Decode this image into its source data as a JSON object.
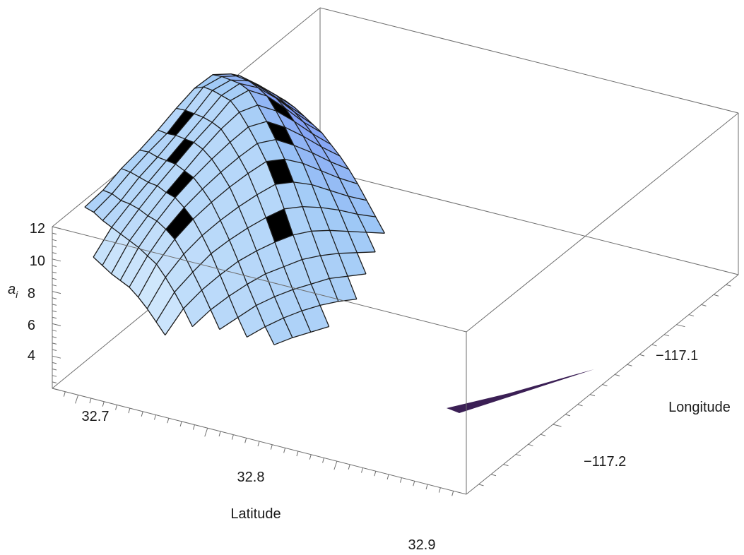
{
  "chart_data": {
    "type": "surface3d",
    "x_axis": {
      "label": "Latitude",
      "ticks": [
        "32.7",
        "32.8",
        "32.9"
      ],
      "range": [
        32.64,
        32.96
      ]
    },
    "y_axis": {
      "label": "Longitude",
      "ticks": [
        "−117.1",
        "−117.2"
      ],
      "range": [
        -117.26,
        -117.04
      ]
    },
    "z_axis": {
      "label": "a",
      "label_subscript": "i",
      "ticks": [
        "4",
        "6",
        "8",
        "10",
        "12"
      ],
      "range": [
        2.5,
        12.5
      ]
    },
    "grid_size": [
      16,
      13
    ],
    "surface_heights": [
      [
        null,
        4.0,
        4.8,
        5.9,
        6.8,
        7.8,
        8.9,
        9.9,
        10.5,
        10.3,
        9.6,
        8.8,
        7.9
      ],
      [
        null,
        4.3,
        5.2,
        6.3,
        7.3,
        8.2,
        9.4,
        10.6,
        11.0,
        10.8,
        10.0,
        9.1,
        8.1
      ],
      [
        null,
        4.4,
        5.4,
        6.6,
        7.6,
        8.7,
        9.8,
        11.0,
        11.4,
        11.1,
        10.2,
        9.2,
        8.2
      ],
      [
        3.0,
        4.6,
        5.8,
        6.9,
        8.0,
        9.1,
        10.2,
        11.3,
        11.8,
        11.3,
        10.4,
        9.3,
        8.3
      ],
      [
        3.1,
        4.8,
        6.1,
        7.3,
        8.4,
        9.5,
        10.5,
        11.6,
        12.0,
        11.4,
        10.4,
        9.3,
        8.4
      ],
      [
        3.2,
        5.0,
        6.3,
        7.5,
        8.6,
        9.7,
        10.7,
        11.5,
        11.7,
        11.1,
        10.2,
        9.2,
        8.3
      ],
      [
        3.4,
        5.2,
        6.6,
        7.8,
        8.8,
        9.7,
        10.5,
        11.2,
        11.3,
        10.7,
        9.9,
        9.0,
        8.2
      ],
      [
        3.6,
        5.3,
        6.7,
        7.8,
        8.7,
        9.5,
        10.2,
        10.8,
        10.8,
        10.2,
        9.5,
        8.7,
        8.0
      ],
      [
        3.6,
        5.4,
        6.7,
        7.7,
        8.5,
        9.2,
        9.8,
        10.3,
        10.2,
        9.7,
        9.0,
        8.3,
        7.7
      ],
      [
        3.5,
        5.2,
        6.4,
        7.3,
        8.0,
        8.6,
        9.1,
        9.5,
        9.4,
        9.0,
        8.4,
        7.8,
        7.3
      ],
      [
        3.3,
        4.9,
        5.9,
        6.8,
        7.4,
        7.9,
        8.3,
        8.6,
        8.5,
        8.2,
        7.8,
        7.3,
        6.9
      ],
      [
        3.1,
        4.5,
        5.4,
        6.1,
        6.7,
        7.1,
        7.4,
        7.6,
        7.6,
        7.4,
        7.1,
        6.8,
        6.5
      ],
      [
        null,
        4.0,
        4.8,
        5.4,
        5.9,
        6.3,
        6.5,
        6.7,
        6.7,
        6.6,
        6.4,
        6.2,
        null
      ],
      [
        null,
        null,
        4.2,
        4.7,
        5.2,
        5.5,
        5.7,
        5.8,
        5.9,
        5.8,
        5.7,
        null,
        null
      ],
      [
        null,
        null,
        null,
        4.1,
        4.5,
        4.8,
        5.0,
        5.1,
        5.1,
        5.0,
        null,
        null,
        null
      ],
      [
        null,
        null,
        null,
        null,
        4.0,
        4.2,
        4.3,
        4.4,
        null,
        null,
        null,
        null,
        null
      ]
    ],
    "colors": {
      "surface_low": "#4a4ef0",
      "surface_mid": "#9ec8f6",
      "surface_high": "#e8f6ff",
      "surface_pink": "#efc2ee",
      "underside": "#3b1f55",
      "mesh": "#1b1b1b",
      "box": "#6e6e6e"
    }
  }
}
